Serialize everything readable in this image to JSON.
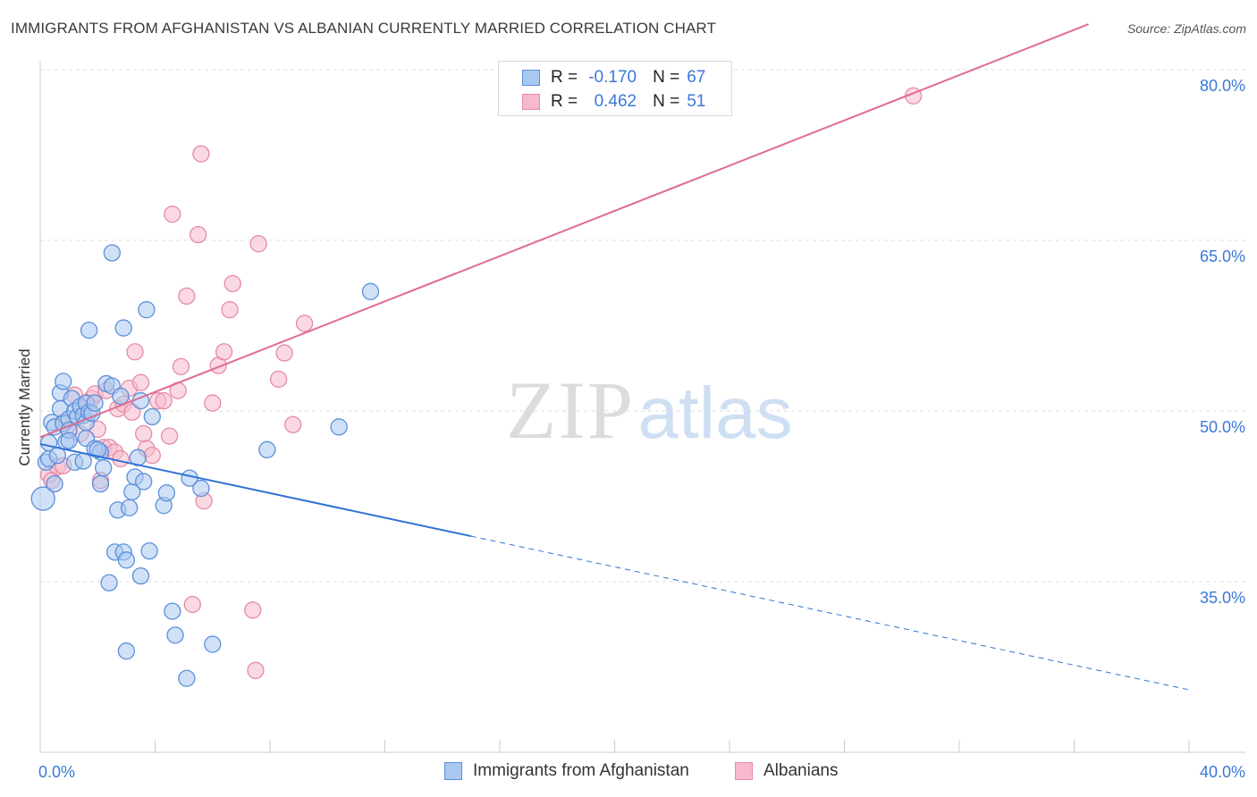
{
  "header": {
    "title": "IMMIGRANTS FROM AFGHANISTAN VS ALBANIAN CURRENTLY MARRIED CORRELATION CHART",
    "source": "Source: ZipAtlas.com"
  },
  "watermark": {
    "zip": "ZIP",
    "atlas": "atlas"
  },
  "legend": {
    "r_label": "R =",
    "n_label": "N =",
    "series": [
      {
        "name": "Immigrants from Afghanistan",
        "r": "-0.170",
        "n": "67"
      },
      {
        "name": "Albanians",
        "r": "0.462",
        "n": "51"
      }
    ]
  },
  "colors": {
    "blue_fill": "#a9c8f0",
    "blue_stroke": "#5b8fd9",
    "blue_line": "#2f72d6",
    "pink_fill": "#f7b9cb",
    "pink_stroke": "#e58aa7",
    "pink_line": "#e06b92",
    "axis_text": "#3b78d8",
    "grid": "#dddddd"
  },
  "chart_data": {
    "type": "scatter",
    "title": "IMMIGRANTS FROM AFGHANISTAN VS ALBANIAN CURRENTLY MARRIED CORRELATION CHART",
    "xlabel": "",
    "ylabel": "Currently Married",
    "xlim": [
      0,
      40
    ],
    "ylim": [
      20,
      84
    ],
    "x_tick_labels": [
      "0.0%",
      "40.0%"
    ],
    "y_ticks": [
      35,
      50,
      65,
      80
    ],
    "y_tick_labels": [
      "35.0%",
      "50.0%",
      "65.0%",
      "80.0%"
    ],
    "grid": true,
    "series": [
      {
        "name": "Immigrants from Afghanistan",
        "r": -0.17,
        "n": 67,
        "trend": {
          "x0": 0,
          "y0": 47.1,
          "x1": 15,
          "y1": 39.0,
          "dashed_to_x": 40,
          "dashed_to_y": 25.5
        },
        "points": [
          [
            0.1,
            42.3
          ],
          [
            0.2,
            45.5
          ],
          [
            0.3,
            47.2
          ],
          [
            0.3,
            45.8
          ],
          [
            0.4,
            49.0
          ],
          [
            0.5,
            48.6
          ],
          [
            0.6,
            46.1
          ],
          [
            0.7,
            50.2
          ],
          [
            0.7,
            51.6
          ],
          [
            0.8,
            52.6
          ],
          [
            0.8,
            48.9
          ],
          [
            0.9,
            47.3
          ],
          [
            1.0,
            49.3
          ],
          [
            1.0,
            48.3
          ],
          [
            1.1,
            51.1
          ],
          [
            1.2,
            50.0
          ],
          [
            1.2,
            45.5
          ],
          [
            1.3,
            49.5
          ],
          [
            1.4,
            50.4
          ],
          [
            1.5,
            49.6
          ],
          [
            1.6,
            49.0
          ],
          [
            1.5,
            45.6
          ],
          [
            1.6,
            50.7
          ],
          [
            1.6,
            47.6
          ],
          [
            1.7,
            49.9
          ],
          [
            1.8,
            49.8
          ],
          [
            1.7,
            57.1
          ],
          [
            1.9,
            50.7
          ],
          [
            1.9,
            46.7
          ],
          [
            2.1,
            46.4
          ],
          [
            2.1,
            43.6
          ],
          [
            2.2,
            45.0
          ],
          [
            2.3,
            52.4
          ],
          [
            2.4,
            34.9
          ],
          [
            2.5,
            63.9
          ],
          [
            2.5,
            52.2
          ],
          [
            2.6,
            37.6
          ],
          [
            2.7,
            41.3
          ],
          [
            2.8,
            51.3
          ],
          [
            2.9,
            37.6
          ],
          [
            2.9,
            57.3
          ],
          [
            3.0,
            28.9
          ],
          [
            3.0,
            36.9
          ],
          [
            3.1,
            41.5
          ],
          [
            3.2,
            42.9
          ],
          [
            3.3,
            44.2
          ],
          [
            3.4,
            45.9
          ],
          [
            3.5,
            50.9
          ],
          [
            3.5,
            35.5
          ],
          [
            3.6,
            43.8
          ],
          [
            3.7,
            58.9
          ],
          [
            3.8,
            37.7
          ],
          [
            3.9,
            49.5
          ],
          [
            4.3,
            41.7
          ],
          [
            4.4,
            42.8
          ],
          [
            4.6,
            32.4
          ],
          [
            4.7,
            30.3
          ],
          [
            5.1,
            26.5
          ],
          [
            5.2,
            44.1
          ],
          [
            5.6,
            43.2
          ],
          [
            6.0,
            29.5
          ],
          [
            7.9,
            46.6
          ],
          [
            10.4,
            48.6
          ],
          [
            11.5,
            60.5
          ],
          [
            0.5,
            43.6
          ],
          [
            1.0,
            47.4
          ],
          [
            2.0,
            46.6
          ]
        ]
      },
      {
        "name": "Albanians",
        "r": 0.462,
        "n": 51,
        "trend": {
          "x0": 0,
          "y0": 47.7,
          "x1": 36.5,
          "y1": 84.0
        },
        "points": [
          [
            0.3,
            44.4
          ],
          [
            0.4,
            43.9
          ],
          [
            0.6,
            45.1
          ],
          [
            0.8,
            49.0
          ],
          [
            1.0,
            48.4
          ],
          [
            1.2,
            51.4
          ],
          [
            1.4,
            48.0
          ],
          [
            1.5,
            50.2
          ],
          [
            1.8,
            51.1
          ],
          [
            1.9,
            51.5
          ],
          [
            2.0,
            48.4
          ],
          [
            2.1,
            43.9
          ],
          [
            2.2,
            46.8
          ],
          [
            2.3,
            51.8
          ],
          [
            2.4,
            46.8
          ],
          [
            2.6,
            46.4
          ],
          [
            2.7,
            50.2
          ],
          [
            2.8,
            45.8
          ],
          [
            2.9,
            50.6
          ],
          [
            3.1,
            52.0
          ],
          [
            3.2,
            49.9
          ],
          [
            3.3,
            55.2
          ],
          [
            3.5,
            52.5
          ],
          [
            3.6,
            48.0
          ],
          [
            3.7,
            46.7
          ],
          [
            3.9,
            46.1
          ],
          [
            4.1,
            50.9
          ],
          [
            4.3,
            50.9
          ],
          [
            4.5,
            47.8
          ],
          [
            4.6,
            67.3
          ],
          [
            4.8,
            51.8
          ],
          [
            4.9,
            53.9
          ],
          [
            5.1,
            60.1
          ],
          [
            5.3,
            33.0
          ],
          [
            5.5,
            65.5
          ],
          [
            5.6,
            72.6
          ],
          [
            5.7,
            42.1
          ],
          [
            6.0,
            50.7
          ],
          [
            6.2,
            54.0
          ],
          [
            6.4,
            55.2
          ],
          [
            6.6,
            58.9
          ],
          [
            6.7,
            61.2
          ],
          [
            7.4,
            32.5
          ],
          [
            7.5,
            27.2
          ],
          [
            7.6,
            64.7
          ],
          [
            8.3,
            52.8
          ],
          [
            8.5,
            55.1
          ],
          [
            8.8,
            48.8
          ],
          [
            9.2,
            57.7
          ],
          [
            30.4,
            77.7
          ],
          [
            0.8,
            45.2
          ]
        ]
      }
    ]
  }
}
